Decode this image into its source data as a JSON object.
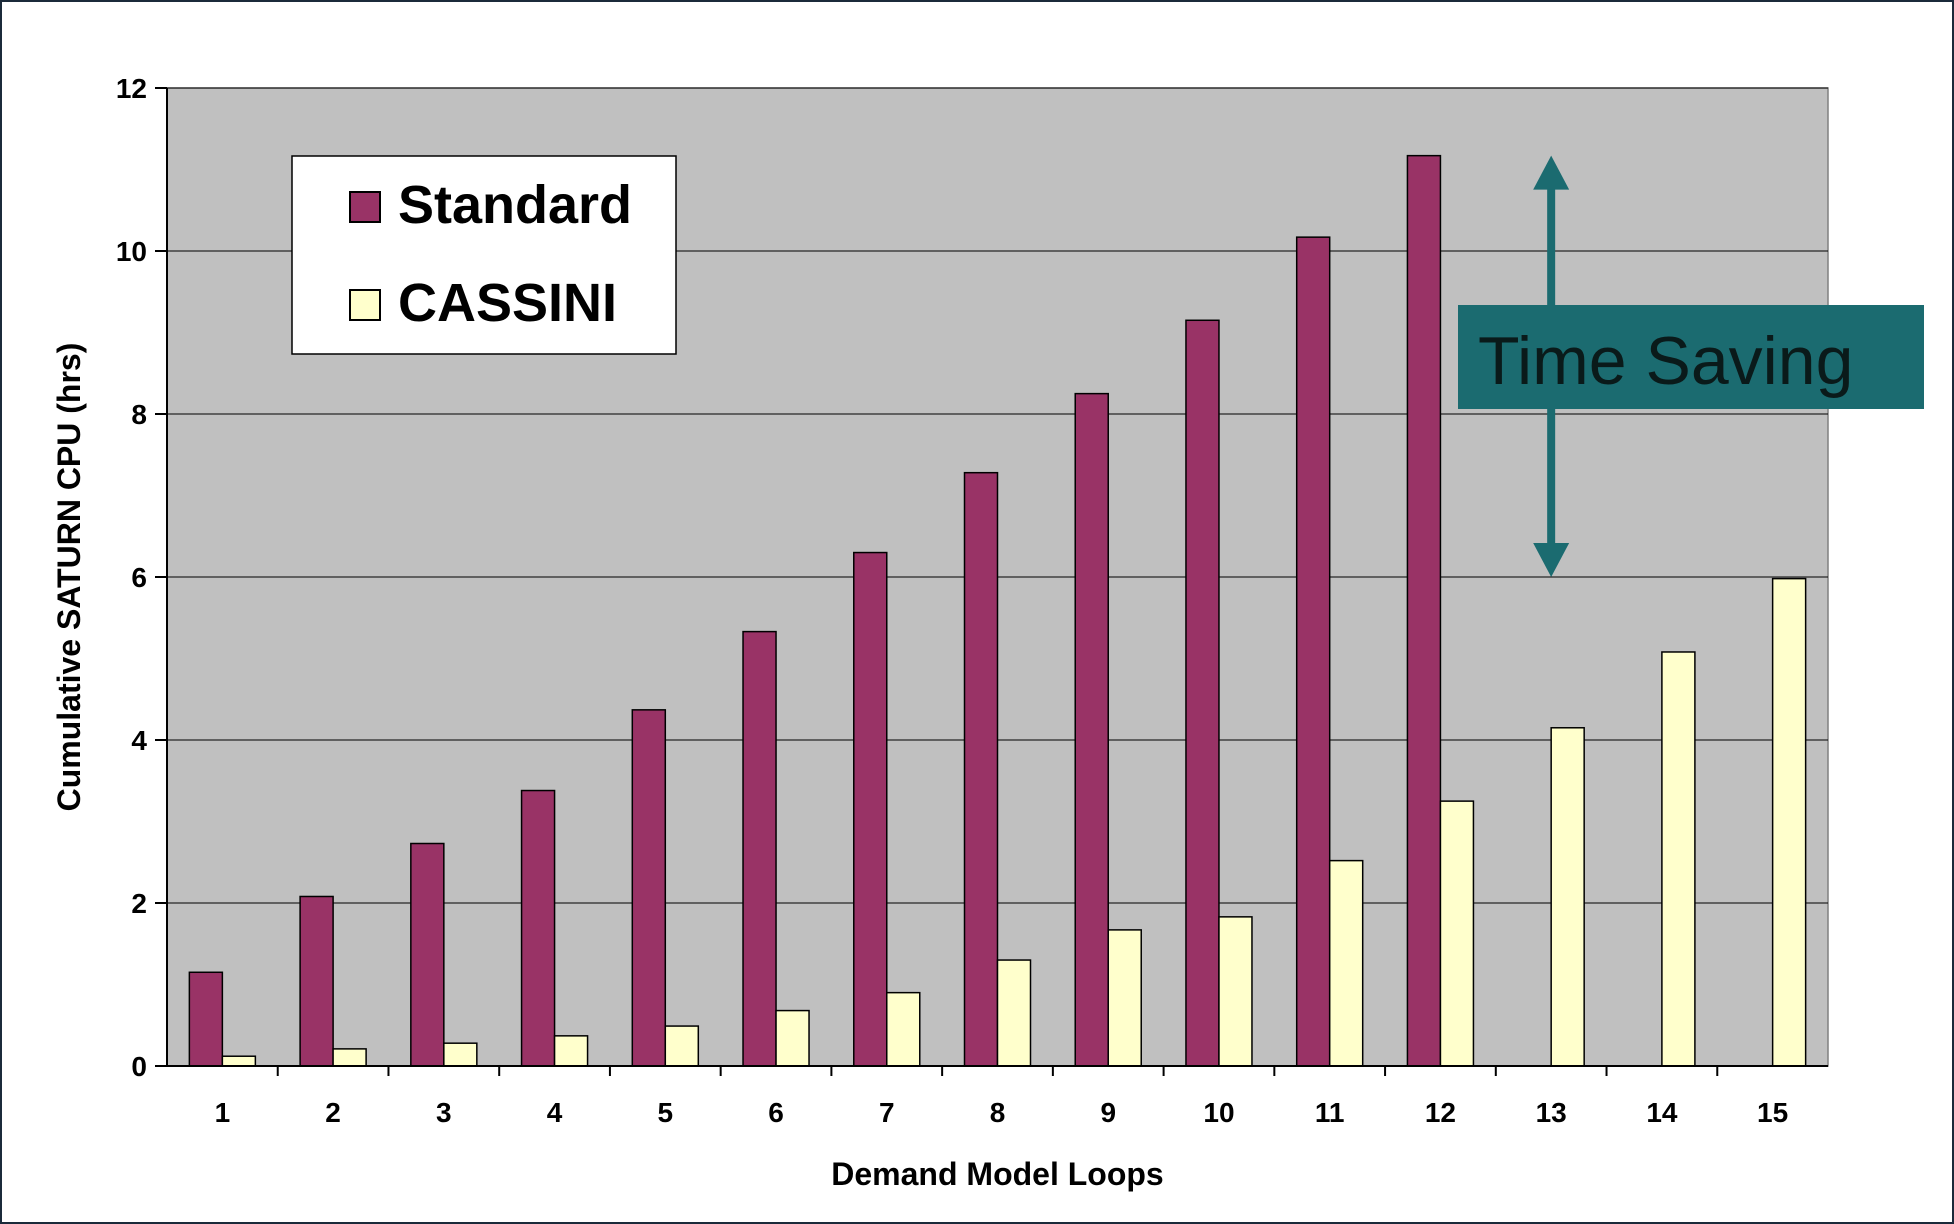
{
  "chart_data": {
    "type": "bar",
    "title": "",
    "xlabel": "Demand Model Loops",
    "ylabel": "Cumulative SATURN CPU (hrs)",
    "categories": [
      "1",
      "2",
      "3",
      "4",
      "5",
      "6",
      "7",
      "8",
      "9",
      "10",
      "11",
      "12",
      "13",
      "14",
      "15"
    ],
    "series": [
      {
        "name": "Standard",
        "color": "#993366",
        "values": [
          1.15,
          2.08,
          2.73,
          3.38,
          4.37,
          5.33,
          6.3,
          7.28,
          8.25,
          9.15,
          10.17,
          11.17,
          null,
          null,
          null
        ]
      },
      {
        "name": "CASSINI",
        "color": "#ffffcc",
        "values": [
          0.12,
          0.21,
          0.28,
          0.37,
          0.49,
          0.68,
          0.9,
          1.3,
          1.67,
          1.83,
          2.52,
          3.25,
          4.15,
          5.08,
          5.98
        ]
      }
    ],
    "ylim": [
      0,
      12
    ],
    "yticks": [
      0,
      2,
      4,
      6,
      8,
      10,
      12
    ],
    "grid": true,
    "plot_background": "#c0c0c0",
    "legend_placement": "top-left inside plot",
    "annotation": {
      "text": "Time Saving",
      "box_color": "#1b6b70",
      "arrow_color": "#1b6b70",
      "arrow_from": 6,
      "arrow_to": 11.17,
      "arrow_category": "13"
    }
  }
}
